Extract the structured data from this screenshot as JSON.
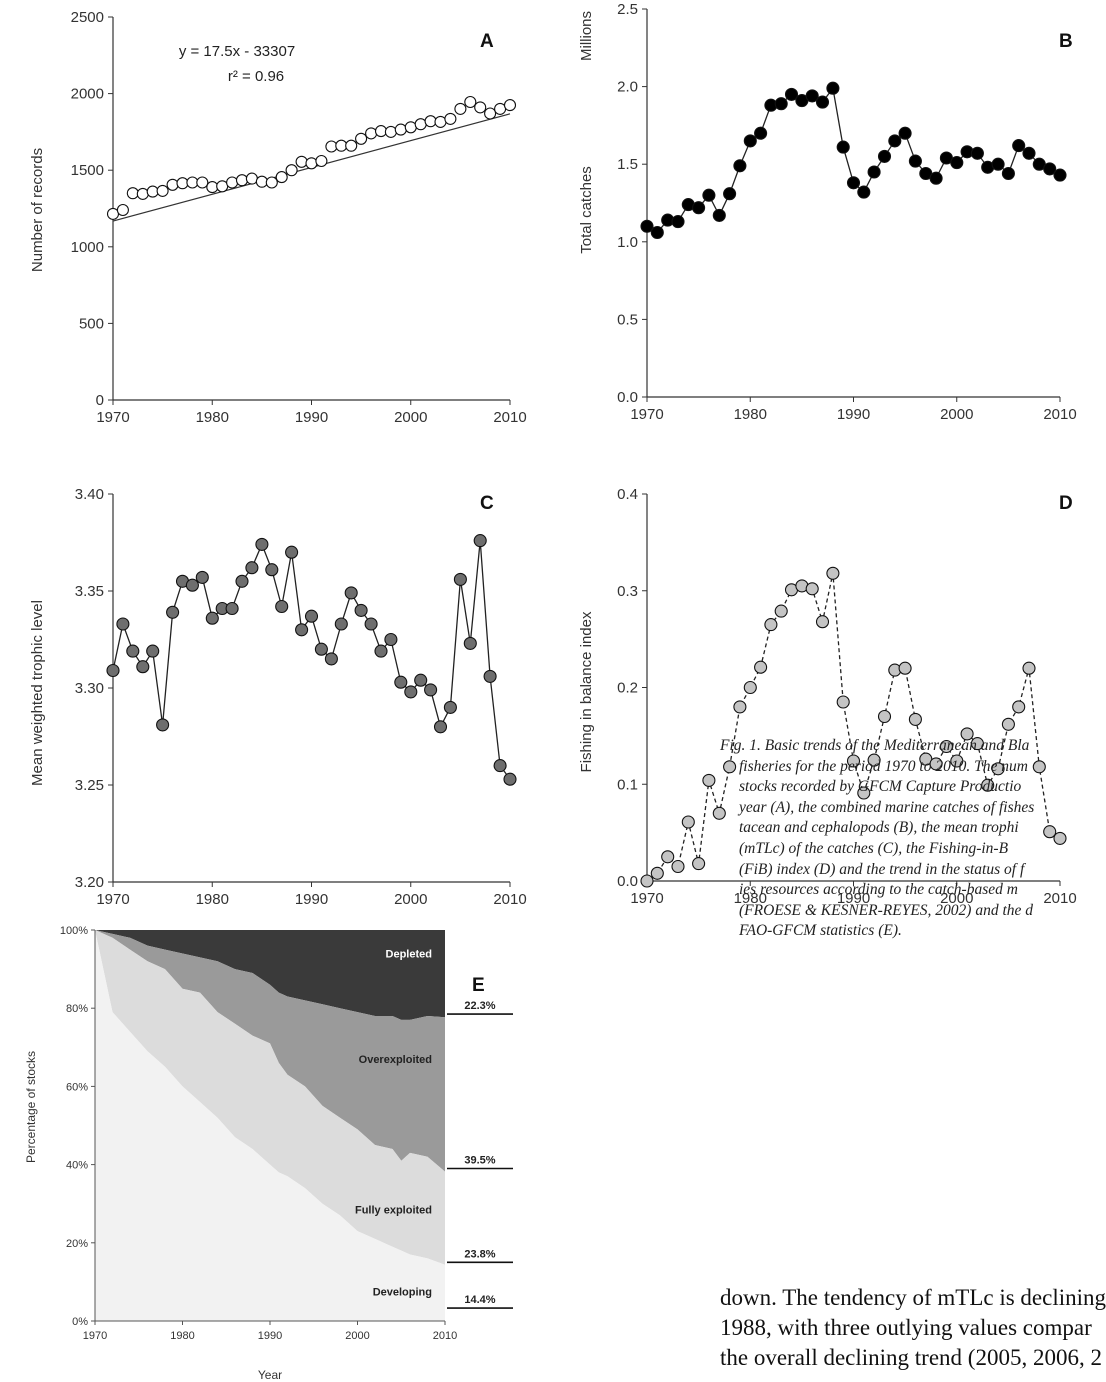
{
  "chart_data": [
    {
      "panel": "A",
      "type": "scatter",
      "x": [
        1970,
        1971,
        1972,
        1973,
        1974,
        1975,
        1976,
        1977,
        1978,
        1979,
        1980,
        1981,
        1982,
        1983,
        1984,
        1985,
        1986,
        1987,
        1988,
        1989,
        1990,
        1991,
        1992,
        1993,
        1994,
        1995,
        1996,
        1997,
        1998,
        1999,
        2000,
        2001,
        2002,
        2003,
        2004,
        2005,
        2006,
        2007,
        2008,
        2009,
        2010
      ],
      "y": [
        1215,
        1240,
        1350,
        1345,
        1360,
        1365,
        1405,
        1415,
        1420,
        1420,
        1390,
        1395,
        1420,
        1435,
        1445,
        1425,
        1420,
        1455,
        1500,
        1555,
        1545,
        1560,
        1655,
        1660,
        1660,
        1705,
        1740,
        1755,
        1750,
        1765,
        1780,
        1800,
        1820,
        1815,
        1835,
        1900,
        1945,
        1910,
        1870,
        1900,
        1925
      ],
      "fit_line": {
        "slope": 17.5,
        "intercept": -33307
      },
      "equation": "y = 17.5x - 33307",
      "r2_label": "r² = 0.96",
      "ylabel": "Number of records",
      "xlim": [
        1970,
        2010
      ],
      "ylim": [
        0,
        2500
      ],
      "xticks": [
        "1970",
        "1980",
        "1990",
        "2000",
        "2010"
      ],
      "yticks": [
        "0",
        "500",
        "1000",
        "1500",
        "2000",
        "2500"
      ],
      "marker": "open-circle"
    },
    {
      "panel": "B",
      "type": "line",
      "x": [
        1970,
        1971,
        1972,
        1973,
        1974,
        1975,
        1976,
        1977,
        1978,
        1979,
        1980,
        1981,
        1982,
        1983,
        1984,
        1985,
        1986,
        1987,
        1988,
        1989,
        1990,
        1991,
        1992,
        1993,
        1994,
        1995,
        1996,
        1997,
        1998,
        1999,
        2000,
        2001,
        2002,
        2003,
        2004,
        2005,
        2006,
        2007,
        2008,
        2009,
        2010
      ],
      "y": [
        1.1,
        1.06,
        1.14,
        1.13,
        1.24,
        1.22,
        1.3,
        1.17,
        1.31,
        1.49,
        1.65,
        1.7,
        1.88,
        1.89,
        1.95,
        1.91,
        1.94,
        1.9,
        1.99,
        1.61,
        1.38,
        1.32,
        1.45,
        1.55,
        1.65,
        1.7,
        1.52,
        1.44,
        1.41,
        1.54,
        1.51,
        1.58,
        1.57,
        1.48,
        1.5,
        1.44,
        1.62,
        1.57,
        1.5,
        1.47,
        1.43
      ],
      "ylabel": "Total catches",
      "yunit_label": "Millions",
      "xlim": [
        1970,
        2010
      ],
      "ylim": [
        0,
        2.5
      ],
      "xticks": [
        "1970",
        "1980",
        "1990",
        "2000",
        "2010"
      ],
      "yticks": [
        "0.0",
        "0.5",
        "1.0",
        "1.5",
        "2.0",
        "2.5"
      ],
      "marker": "filled-black"
    },
    {
      "panel": "C",
      "type": "line",
      "x": [
        1970,
        1971,
        1972,
        1973,
        1974,
        1975,
        1976,
        1977,
        1978,
        1979,
        1980,
        1981,
        1982,
        1983,
        1984,
        1985,
        1986,
        1987,
        1988,
        1989,
        1990,
        1991,
        1992,
        1993,
        1994,
        1995,
        1996,
        1997,
        1998,
        1999,
        2000,
        2001,
        2002,
        2003,
        2004,
        2005,
        2006,
        2007,
        2008,
        2009,
        2010
      ],
      "y": [
        3.309,
        3.333,
        3.319,
        3.311,
        3.319,
        3.281,
        3.339,
        3.355,
        3.353,
        3.357,
        3.336,
        3.341,
        3.341,
        3.355,
        3.362,
        3.374,
        3.361,
        3.342,
        3.37,
        3.33,
        3.337,
        3.32,
        3.315,
        3.333,
        3.349,
        3.34,
        3.333,
        3.319,
        3.325,
        3.303,
        3.298,
        3.304,
        3.299,
        3.28,
        3.29,
        3.356,
        3.323,
        3.376,
        3.306,
        3.26,
        3.253
      ],
      "ylabel": "Mean weighted trophic level",
      "xlim": [
        1970,
        2010
      ],
      "ylim": [
        3.2,
        3.4
      ],
      "xticks": [
        "1970",
        "1980",
        "1990",
        "2000",
        "2010"
      ],
      "yticks": [
        "3.20",
        "3.25",
        "3.30",
        "3.35",
        "3.40"
      ],
      "marker": "filled-dark-gray"
    },
    {
      "panel": "D",
      "type": "line",
      "x": [
        1970,
        1971,
        1972,
        1973,
        1974,
        1975,
        1976,
        1977,
        1978,
        1979,
        1980,
        1981,
        1982,
        1983,
        1984,
        1985,
        1986,
        1987,
        1988,
        1989,
        1990,
        1991,
        1992,
        1993,
        1994,
        1995,
        1996,
        1997,
        1998,
        1999,
        2000,
        2001,
        2002,
        2003,
        2004,
        2005,
        2006,
        2007,
        2008,
        2009,
        2010
      ],
      "y": [
        0.0,
        0.008,
        0.025,
        0.015,
        0.061,
        0.018,
        0.104,
        0.07,
        0.118,
        0.18,
        0.2,
        0.221,
        0.265,
        0.279,
        0.301,
        0.305,
        0.302,
        0.268,
        0.318,
        0.185,
        0.124,
        0.091,
        0.125,
        0.17,
        0.218,
        0.22,
        0.167,
        0.126,
        0.121,
        0.139,
        0.124,
        0.152,
        0.142,
        0.099,
        0.116,
        0.162,
        0.18,
        0.22,
        0.118,
        0.051,
        0.044
      ],
      "ylabel": "Fishing in balance index",
      "xlim": [
        1970,
        2010
      ],
      "ylim": [
        0,
        0.4
      ],
      "xticks": [
        "1970",
        "1980",
        "1990",
        "2000",
        "2010"
      ],
      "yticks": [
        "0.0",
        "0.1",
        "0.2",
        "0.3",
        "0.4"
      ],
      "marker": "filled-light-gray",
      "line_style": "dashed"
    },
    {
      "panel": "E",
      "type": "area",
      "x": [
        1970,
        1972,
        1974,
        1976,
        1978,
        1980,
        1982,
        1984,
        1986,
        1988,
        1990,
        1991,
        1992,
        1994,
        1996,
        1998,
        2000,
        2002,
        2004,
        2005,
        2006,
        2008,
        2010
      ],
      "developing": [
        100,
        79,
        74,
        69,
        65,
        60,
        56,
        52,
        47,
        44,
        40,
        38,
        37,
        34,
        30,
        27,
        23,
        21,
        19,
        18,
        17,
        16,
        14.4
      ],
      "fully_exploited_top": [
        100,
        98,
        95,
        92,
        90,
        85,
        84,
        79,
        76,
        73,
        71,
        66,
        63,
        60,
        55,
        52,
        49,
        45,
        44,
        41,
        43,
        42,
        38.2
      ],
      "overexploited_top": [
        100,
        99,
        98,
        96,
        95,
        94,
        93,
        92,
        90,
        89,
        86,
        84,
        83,
        82,
        81,
        80,
        79,
        78,
        78,
        77,
        77,
        78,
        77.7
      ],
      "depleted_top": [
        100,
        100,
        100,
        100,
        100,
        100,
        100,
        100,
        100,
        100,
        100,
        100,
        100,
        100,
        100,
        100,
        100,
        100,
        100,
        100,
        100,
        100,
        100
      ],
      "series": [
        {
          "name": "Developing",
          "end_value": "14.4%",
          "color": "#f2f2f2"
        },
        {
          "name": "Fully exploited",
          "end_value": "23.8%",
          "color": "#dcdcdc"
        },
        {
          "name": "Overexploited",
          "end_value": "39.5%",
          "color": "#9a9a9a"
        },
        {
          "name": "Depleted",
          "end_value": "22.3%",
          "color": "#3a3a3a"
        }
      ],
      "ylabel": "Percentage of stocks",
      "xlabel": "Year",
      "xlim": [
        1970,
        2010
      ],
      "ylim": [
        0,
        100
      ],
      "xticks": [
        "1970",
        "1980",
        "1990",
        "2000",
        "2010"
      ],
      "yticks": [
        "0%",
        "20%",
        "40%",
        "60%",
        "80%",
        "100%"
      ]
    }
  ],
  "caption_lines": [
    "Fig. 1.  Basic trends of the Mediterranean and Bla",
    "fisheries for the period 1970 to 2010. The num",
    "stocks recorded by GFCM Capture Productio",
    "year (A), the combined marine catches of fishes",
    "tacean and cephalopods (B), the mean trophi",
    "(mTLc) of the catches (C), the Fishing-in-B",
    "(FiB) index (D) and the trend in the status of f",
    "ies resources according to the catch-based m",
    "(FROESE & KESNER-REYES, 2002) and the d",
    "FAO-GFCM statistics (E)."
  ],
  "body_lines": [
    "down. The tendency of mTLc is declining",
    "1988, with three outlying values compar",
    "the overall declining trend (2005, 2006, 2"
  ]
}
